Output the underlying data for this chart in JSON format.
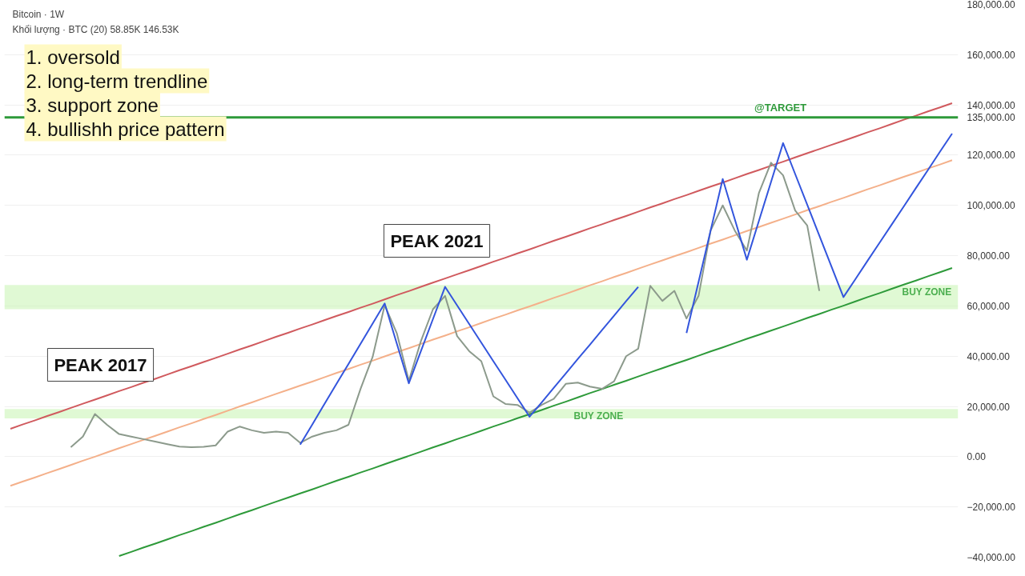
{
  "chart_data": {
    "type": "line",
    "title": "Bitcoin · 1W",
    "subtitle": "Khối lượng · BTC (20) 58.85K 146.53K",
    "categories": [
      null,
      null,
      null,
      null,
      null,
      null,
      null,
      null,
      null,
      null,
      null,
      null,
      null,
      null,
      null,
      null,
      null,
      null,
      null,
      null,
      null,
      null,
      null,
      null,
      null,
      null,
      null,
      null,
      null,
      null,
      null,
      null,
      null,
      null,
      null,
      null,
      null,
      null,
      null,
      null,
      null,
      null,
      null,
      null,
      null,
      null,
      null,
      null,
      null,
      null,
      null,
      null,
      null,
      null,
      null,
      null,
      null,
      null,
      null,
      null,
      null,
      null,
      null,
      null,
      null,
      null,
      null,
      null,
      null,
      null,
      null,
      null,
      null,
      null,
      null,
      null,
      null,
      null,
      null
    ],
    "ylim": [
      -40000,
      180000
    ],
    "yticks": [
      {
        "value": -40000,
        "label": "−40,000.00"
      },
      {
        "value": -20000,
        "label": "−20,000.00"
      },
      {
        "value": 0,
        "label": "0.00"
      },
      {
        "value": 20000,
        "label": "20,000.00"
      },
      {
        "value": 40000,
        "label": "40,000.00"
      },
      {
        "value": 60000,
        "label": "60,000.00"
      },
      {
        "value": 80000,
        "label": "80,000.00"
      },
      {
        "value": 100000,
        "label": "100,000.00"
      },
      {
        "value": 120000,
        "label": "120,000.00"
      },
      {
        "value": 135000,
        "label": "135,000.00"
      },
      {
        "value": 140000,
        "label": "140,000.00"
      },
      {
        "value": 160000,
        "label": "160,000.00"
      },
      {
        "value": 180000,
        "label": "180,000.00"
      }
    ],
    "tick_labels": "y",
    "grid": "y",
    "marker": "none",
    "line_style": "solid",
    "series": [
      {
        "color": "#d05a5e",
        "values": [
          11100,
          12800,
          14400,
          16100,
          17700,
          19400,
          21100,
          22700,
          24400,
          26100,
          27700,
          29400,
          31000,
          32700,
          34400,
          36000,
          37700,
          39300,
          41000,
          42700,
          44300,
          46000,
          47700,
          49300,
          51000,
          52600,
          54300,
          56000,
          57600,
          59300,
          60900,
          62600,
          64300,
          65900,
          67600,
          69300,
          70900,
          72600,
          74200,
          75900,
          77600,
          79200,
          80900,
          82500,
          84200,
          85900,
          87500,
          89200,
          90900,
          92500,
          94200,
          95800,
          97500,
          99200,
          100800,
          102500,
          104100,
          105800,
          107500,
          109100,
          110800,
          112500,
          114100,
          115800,
          117400,
          119100,
          120800,
          122400,
          124100,
          125700,
          127400,
          129100,
          130700,
          132400,
          134100,
          135700,
          137400,
          139000,
          140700
        ]
      },
      {
        "color": "#f4b08a",
        "values": [
          -11600,
          -9900,
          -8300,
          -6600,
          -5000,
          -3300,
          -1600,
          0,
          1700,
          3400,
          5000,
          6700,
          8300,
          10000,
          11700,
          13300,
          15000,
          16600,
          18300,
          20000,
          21600,
          23300,
          25000,
          26600,
          28300,
          29900,
          31600,
          33300,
          34900,
          36600,
          38200,
          39900,
          41600,
          43200,
          44900,
          46600,
          48200,
          49900,
          51500,
          53200,
          54900,
          56500,
          58200,
          59800,
          61500,
          63200,
          64800,
          66500,
          68200,
          69800,
          71500,
          73100,
          74800,
          76500,
          78100,
          79800,
          81400,
          83100,
          84800,
          86400,
          88100,
          89800,
          91400,
          93100,
          94700,
          96400,
          98100,
          99700,
          101400,
          103000,
          104700,
          106400,
          108000,
          109700,
          111400,
          113000,
          114700,
          116300,
          118000
        ]
      },
      {
        "color": "#2e9a3a",
        "values": [
          null,
          null,
          null,
          null,
          null,
          null,
          null,
          null,
          null,
          -39500,
          -37900,
          -36200,
          -34600,
          -32900,
          -31200,
          -29600,
          -27900,
          -26300,
          -24600,
          -22900,
          -21300,
          -19600,
          -17900,
          -16300,
          -14600,
          -13000,
          -11300,
          -9600,
          -8000,
          -6300,
          -4700,
          -3000,
          -1300,
          300,
          2000,
          3700,
          5300,
          7000,
          8600,
          10300,
          12000,
          13600,
          15300,
          16900,
          18600,
          20300,
          21900,
          23600,
          25300,
          26900,
          28600,
          30200,
          31900,
          33600,
          35200,
          36900,
          38500,
          40200,
          41900,
          43500,
          45200,
          46900,
          48500,
          50200,
          51800,
          53500,
          55200,
          56800,
          58500,
          60100,
          61800,
          63500,
          65100,
          66800,
          68500,
          70100,
          71800,
          73400,
          75100
        ]
      },
      {
        "color": "#8c9a8c",
        "values": [
          null,
          null,
          null,
          null,
          null,
          3800,
          8000,
          17000,
          12700,
          9000,
          8000,
          7000,
          6000,
          5000,
          4000,
          3800,
          3900,
          4500,
          10000,
          12000,
          10500,
          9500,
          10000,
          9500,
          5500,
          8000,
          9500,
          10500,
          12700,
          27000,
          39700,
          60300,
          49200,
          30200,
          46000,
          58700,
          64000,
          48000,
          42000,
          38000,
          24000,
          21000,
          20600,
          17500,
          20600,
          23000,
          29000,
          29500,
          27900,
          27000,
          30000,
          40000,
          43000,
          68000,
          62000,
          66000,
          55000,
          64000,
          90000,
          100000,
          90000,
          82000,
          105000,
          117000,
          112000,
          98000,
          92000,
          66000,
          null,
          null,
          null,
          null,
          null,
          null,
          null,
          null,
          null,
          null,
          null
        ]
      },
      {
        "color": "#3355dd",
        "values": [
          null,
          null,
          null,
          null,
          null,
          null,
          null,
          null,
          null,
          null,
          null,
          null,
          null,
          null,
          null,
          null,
          null,
          null,
          null,
          null,
          null,
          null,
          null,
          null,
          4800,
          12800,
          20900,
          28900,
          36900,
          44900,
          53000,
          61000,
          45100,
          29200,
          42000,
          54800,
          67600,
          60200,
          52800,
          45400,
          38000,
          30700,
          23300,
          15900,
          21600,
          27400,
          33100,
          38900,
          44600,
          50400,
          56100,
          61900,
          67600,
          null,
          null,
          null,
          null,
          null,
          null,
          null,
          null,
          null,
          null,
          null,
          null,
          null,
          null,
          null,
          null,
          null,
          null,
          null,
          null,
          null,
          null,
          null,
          null,
          null,
          null
        ]
      },
      {
        "color": "#3355dd",
        "values": [
          null,
          null,
          null,
          null,
          null,
          null,
          null,
          null,
          null,
          null,
          null,
          null,
          null,
          null,
          null,
          null,
          null,
          null,
          null,
          null,
          null,
          null,
          null,
          null,
          null,
          null,
          null,
          null,
          null,
          null,
          null,
          null,
          null,
          null,
          null,
          null,
          null,
          null,
          null,
          null,
          null,
          null,
          null,
          null,
          null,
          null,
          null,
          null,
          null,
          null,
          null,
          null,
          null,
          null,
          null,
          null,
          49200,
          69600,
          90100,
          110500,
          94500,
          78400,
          93900,
          109300,
          124800,
          112500,
          100300,
          88000,
          75800,
          63500,
          70700,
          78000,
          85200,
          92400,
          99600,
          106900,
          114100,
          121400,
          128600
        ]
      }
    ],
    "ref_lines": [
      {
        "axis": "y",
        "value": 135000,
        "label": "@TARGET",
        "color": "#2e9a3a"
      }
    ],
    "bands": [
      {
        "axis": "y",
        "from": 58700,
        "to": 68300,
        "label": "BUY ZONE",
        "color": "#ccf5b8"
      },
      {
        "axis": "y",
        "from": 15200,
        "to": 19000,
        "label": "BUY ZONE",
        "color": "#ccf5b8"
      }
    ],
    "annotations": [
      "1. oversold",
      "2. long-term trendline",
      "3. support zone",
      "4. bullishh price pattern",
      "PEAK 2017",
      "PEAK 2021"
    ]
  }
}
